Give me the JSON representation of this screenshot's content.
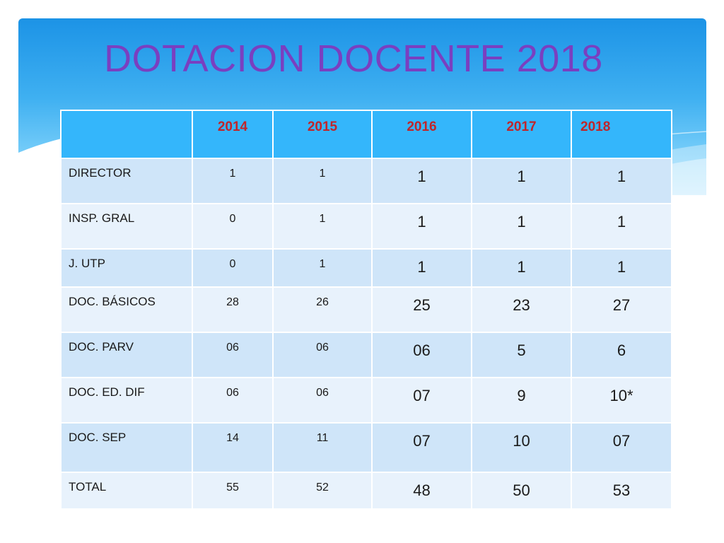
{
  "title": "DOTACION DOCENTE 2018",
  "colors": {
    "title": "#7a3fc0",
    "header_bg": "#34b6fb",
    "header_text": "#c0252a",
    "row_odd": "#cfe5f9",
    "row_even": "#e8f2fc",
    "band_top": "#1c93e6",
    "band_bottom": "#a8e0fc"
  },
  "table": {
    "corner": "",
    "headers": [
      "2014",
      "2015",
      "2016",
      "2017",
      "2018"
    ],
    "rows": [
      {
        "label": "DIRECTOR",
        "values": [
          "1",
          "1",
          "1",
          "1",
          "1"
        ]
      },
      {
        "label": "INSP. GRAL",
        "values": [
          "0",
          "1",
          "1",
          "1",
          "1"
        ]
      },
      {
        "label": "J. UTP",
        "values": [
          "0",
          "1",
          "1",
          "1",
          "1"
        ]
      },
      {
        "label": "DOC. BÁSICOS",
        "values": [
          "28",
          "26",
          "25",
          "23",
          "27"
        ]
      },
      {
        "label": "DOC. PARV",
        "values": [
          "06",
          "06",
          "06",
          "5",
          "6"
        ]
      },
      {
        "label": "DOC. ED. DIF",
        "values": [
          "06",
          "06",
          "07",
          "9",
          "10*"
        ]
      },
      {
        "label": "DOC. SEP",
        "values": [
          "14",
          "11",
          "07",
          "10",
          "07"
        ]
      },
      {
        "label": "TOTAL",
        "values": [
          "55",
          "52",
          "48",
          "50",
          "53"
        ]
      }
    ]
  }
}
